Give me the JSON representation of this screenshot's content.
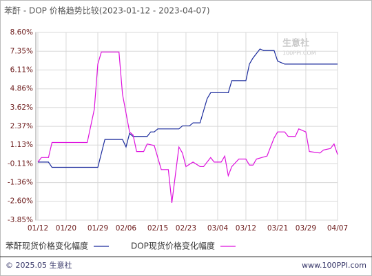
{
  "chart_data": {
    "type": "line",
    "title": "苯酐 - DOP 价格趋势比较(2023-01-12 - 2023-04-07)",
    "watermark": {
      "name": "生意社",
      "url": "100PPI.COM"
    },
    "footer": {
      "left": "© 2025.05 生意社",
      "right": "www.100PPI.com"
    },
    "xlim": [
      "01/12",
      "04/07"
    ],
    "xticks": [
      "01/12",
      "01/20",
      "01/29",
      "02/06",
      "02/15",
      "02/23",
      "03/04",
      "03/12",
      "03/21",
      "03/29",
      "04/07"
    ],
    "ylim": [
      -3.85,
      8.6
    ],
    "yticks": [
      {
        "value": 8.6,
        "label": "8.60%"
      },
      {
        "value": 7.35,
        "label": "7.35%"
      },
      {
        "value": 6.11,
        "label": "6.11%"
      },
      {
        "value": 4.86,
        "label": "4.86%"
      },
      {
        "value": 3.62,
        "label": "3.62%"
      },
      {
        "value": 2.37,
        "label": "2.37%"
      },
      {
        "value": 1.13,
        "label": "1.13%"
      },
      {
        "value": -0.11,
        "label": "-0.11%"
      },
      {
        "value": -1.36,
        "label": "-1.36%"
      },
      {
        "value": -2.6,
        "label": "-2.60%"
      },
      {
        "value": -3.85,
        "label": "-3.85%"
      }
    ],
    "grid": true,
    "series": [
      {
        "name": "苯酐现货价格变化幅度",
        "color": "#1a2a9c",
        "x": [
          "01/12",
          "01/15",
          "01/16",
          "01/29",
          "01/31",
          "02/05",
          "02/06",
          "02/07",
          "02/08",
          "02/12",
          "02/13",
          "02/14",
          "02/15",
          "02/21",
          "02/22",
          "02/24",
          "02/25",
          "02/27",
          "03/01",
          "03/02",
          "03/07",
          "03/08",
          "03/12",
          "03/13",
          "03/14",
          "03/16",
          "03/17",
          "03/20",
          "03/21",
          "03/23",
          "04/07"
        ],
        "values": [
          0,
          0,
          -0.35,
          -0.35,
          1.5,
          1.5,
          1.0,
          1.9,
          1.7,
          1.7,
          2.0,
          2.0,
          2.2,
          2.2,
          2.4,
          2.4,
          2.6,
          2.6,
          4.2,
          4.6,
          4.6,
          5.4,
          5.4,
          6.5,
          6.9,
          7.5,
          7.4,
          7.4,
          6.7,
          6.5,
          6.5
        ]
      },
      {
        "name": "DOP现货价格变化幅度",
        "color": "#dd11dd",
        "x": [
          "01/12",
          "01/13",
          "01/15",
          "01/16",
          "01/26",
          "01/28",
          "01/29",
          "01/30",
          "02/04",
          "02/05",
          "02/07",
          "02/08",
          "02/09",
          "02/11",
          "02/12",
          "02/14",
          "02/16",
          "02/18",
          "02/19",
          "02/21",
          "02/22",
          "02/23",
          "02/25",
          "02/27",
          "02/28",
          "03/01",
          "03/02",
          "03/03",
          "03/05",
          "03/06",
          "03/07",
          "03/08",
          "03/10",
          "03/12",
          "03/13",
          "03/14",
          "03/15",
          "03/18",
          "03/20",
          "03/21",
          "03/23",
          "03/24",
          "03/26",
          "03/27",
          "03/29",
          "03/30",
          "04/02",
          "04/03",
          "04/05",
          "04/06",
          "04/07"
        ],
        "values": [
          0,
          0.3,
          0.3,
          1.3,
          1.3,
          3.5,
          6.5,
          7.3,
          7.3,
          4.5,
          2.0,
          1.8,
          0.7,
          0.7,
          1.2,
          1.1,
          -0.5,
          -0.5,
          -2.7,
          1.0,
          0.6,
          -0.3,
          0.0,
          -0.3,
          -0.3,
          0.0,
          0.3,
          0.0,
          0.0,
          0.4,
          -0.9,
          -0.3,
          0.2,
          0.2,
          -0.2,
          -0.2,
          0.2,
          0.4,
          1.6,
          2.0,
          2.0,
          1.7,
          1.7,
          2.2,
          2.0,
          0.7,
          0.6,
          0.8,
          0.9,
          1.2,
          0.5
        ]
      }
    ]
  }
}
